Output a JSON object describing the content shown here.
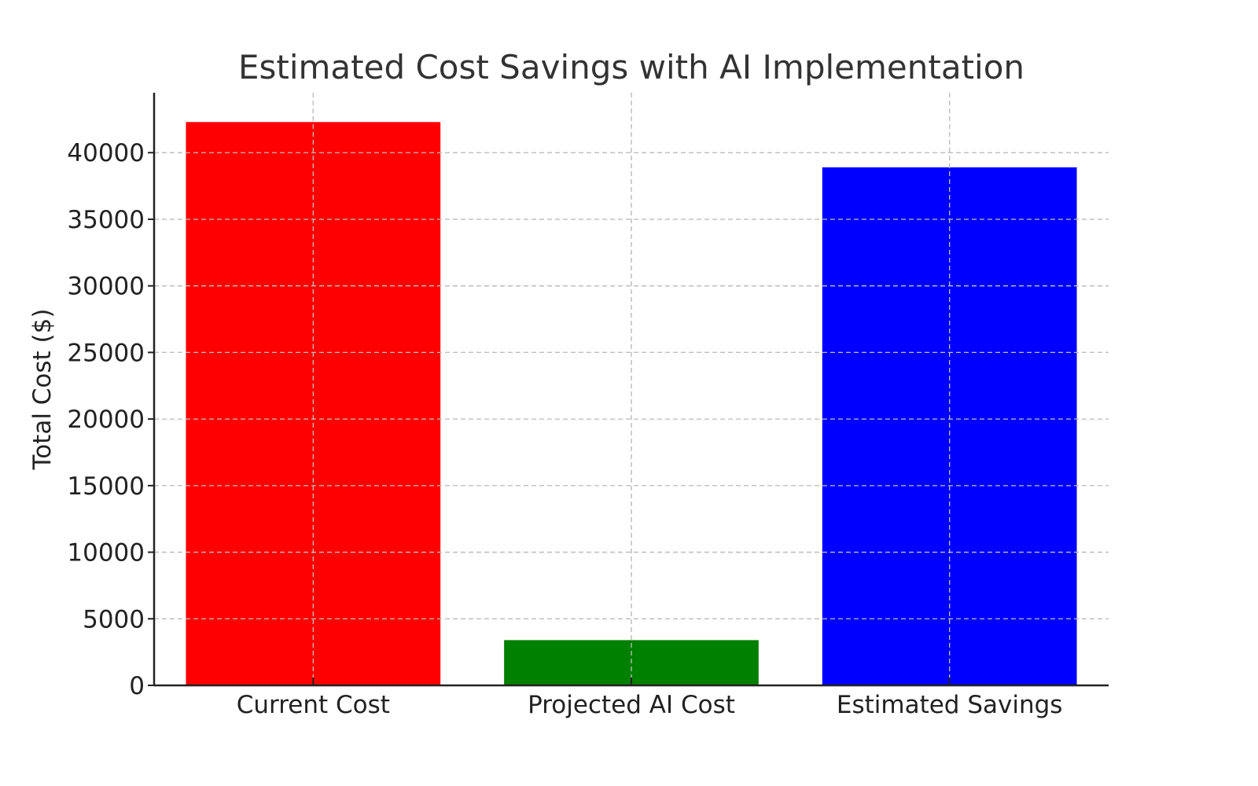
{
  "chart_data": {
    "type": "bar",
    "title": "Estimated Cost Savings with AI Implementation",
    "xlabel": "",
    "ylabel": "Total Cost ($)",
    "categories": [
      "Current Cost",
      "Projected AI Cost",
      "Estimated Savings"
    ],
    "values": [
      42300,
      3400,
      38900
    ],
    "colors": [
      "#ff0000",
      "#008000",
      "#0000ff"
    ],
    "ylim": [
      0,
      44500
    ],
    "yticks": [
      0,
      5000,
      10000,
      15000,
      20000,
      25000,
      30000,
      35000,
      40000
    ],
    "ytick_labels": [
      "0",
      "5000",
      "10000",
      "15000",
      "20000",
      "25000",
      "30000",
      "35000",
      "40000"
    ],
    "grid": true,
    "grid_style": "dashed"
  }
}
